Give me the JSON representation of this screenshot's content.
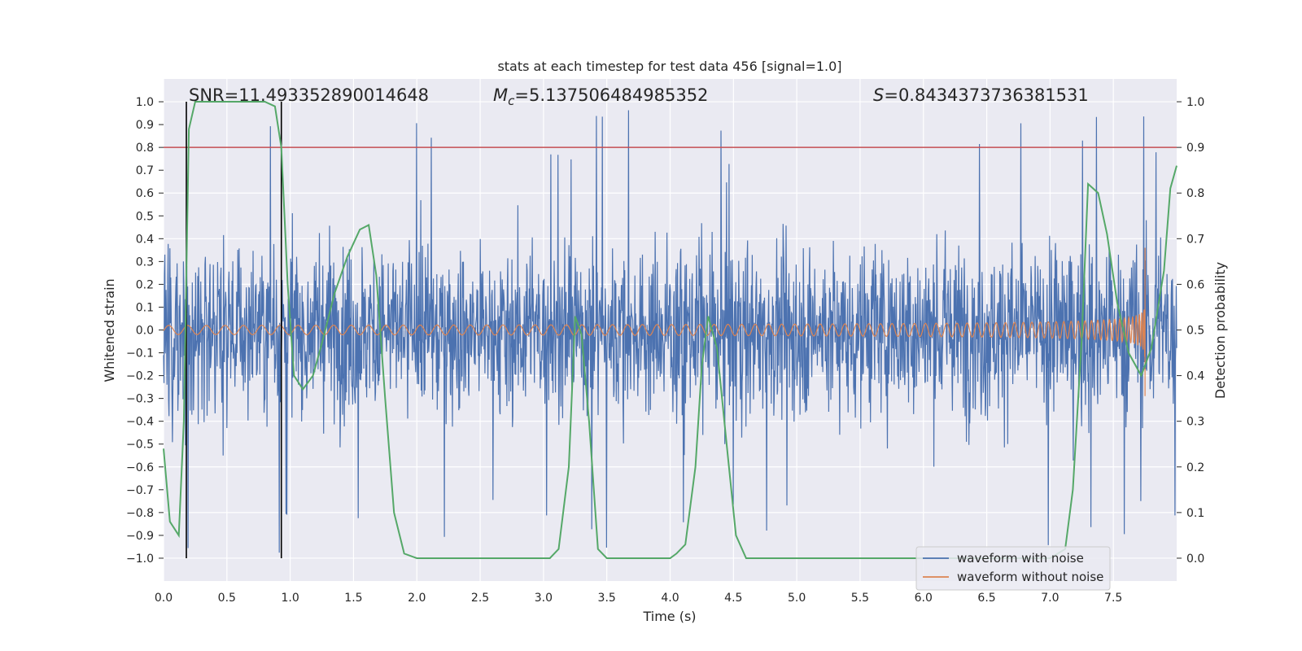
{
  "chart_data": {
    "type": "line",
    "title": "stats at each timestep for test data 456 [signal=1.0]",
    "xlabel": "Time (s)",
    "ylabel": "Whitened strain",
    "y2label": "Detection probability",
    "xlim": [
      0.0,
      8.0
    ],
    "ylim": [
      -1.1,
      1.1
    ],
    "y2lim": [
      -0.05,
      1.05
    ],
    "xticks": [
      "0.0",
      "0.5",
      "1.0",
      "1.5",
      "2.0",
      "2.5",
      "3.0",
      "3.5",
      "4.0",
      "4.5",
      "5.0",
      "5.5",
      "6.0",
      "6.5",
      "7.0",
      "7.5"
    ],
    "xtick_values": [
      0.0,
      0.5,
      1.0,
      1.5,
      2.0,
      2.5,
      3.0,
      3.5,
      4.0,
      4.5,
      5.0,
      5.5,
      6.0,
      6.5,
      7.0,
      7.5
    ],
    "yticks": [
      "1.0",
      "0.9",
      "0.8",
      "0.7",
      "0.6",
      "0.5",
      "0.4",
      "0.3",
      "0.2",
      "0.1",
      "0.0",
      "−0.1",
      "−0.2",
      "−0.3",
      "−0.4",
      "−0.5",
      "−0.6",
      "−0.7",
      "−0.8",
      "−0.9",
      "−1.0"
    ],
    "ytick_values": [
      1.0,
      0.9,
      0.8,
      0.7,
      0.6,
      0.5,
      0.4,
      0.3,
      0.2,
      0.1,
      0.0,
      -0.1,
      -0.2,
      -0.3,
      -0.4,
      -0.5,
      -0.6,
      -0.7,
      -0.8,
      -0.9,
      -1.0
    ],
    "y2ticks": [
      "1.0",
      "0.9",
      "0.8",
      "0.7",
      "0.6",
      "0.5",
      "0.4",
      "0.3",
      "0.2",
      "0.1",
      "0.0"
    ],
    "y2tick_values": [
      1.0,
      0.9,
      0.8,
      0.7,
      0.6,
      0.5,
      0.4,
      0.3,
      0.2,
      0.1,
      0.0
    ],
    "annotations": {
      "snr": "SNR=11.493352890014648",
      "mc_symbol": "M",
      "mc_sub": "c",
      "mc_value": "=5.137506484985352",
      "s_symbol": "S",
      "s_value": "=0.8434373736381531"
    },
    "threshold_line": {
      "y2": 0.9,
      "color": "#c44e52"
    },
    "vertical_markers": [
      0.18,
      0.93
    ],
    "legend": {
      "position": "lower-right",
      "entries": [
        {
          "label": "waveform with noise",
          "color": "#4c72b0"
        },
        {
          "label": "waveform without noise",
          "color": "#dd8452"
        }
      ]
    },
    "series": [
      {
        "name": "waveform with noise",
        "color": "#4c72b0",
        "style": "dense noisy oscillation, mostly within ±0.5 with peaks near ±1.0",
        "x_range": [
          0.0,
          8.0
        ],
        "amplitude_typical": 0.45,
        "peak_max": [
          0.0,
          8.0
        ]
      },
      {
        "name": "waveform without noise",
        "color": "#dd8452",
        "style": "chirp",
        "x_range": [
          0.0,
          7.75
        ],
        "start_amplitude": 0.02,
        "end_amplitude": 0.36,
        "end_min": -0.29
      },
      {
        "name": "detection probability",
        "axis": "y2",
        "color": "#55a868",
        "x": [
          0.0,
          0.05,
          0.12,
          0.16,
          0.2,
          0.25,
          0.3,
          0.5,
          0.7,
          0.8,
          0.88,
          0.93,
          0.98,
          1.03,
          1.1,
          1.18,
          1.25,
          1.35,
          1.45,
          1.55,
          1.62,
          1.68,
          1.75,
          1.82,
          1.9,
          2.0,
          2.5,
          3.0,
          3.05,
          3.12,
          3.2,
          3.25,
          3.3,
          3.36,
          3.43,
          3.5,
          4.0,
          4.05,
          4.12,
          4.2,
          4.25,
          4.3,
          4.37,
          4.45,
          4.52,
          4.6,
          5.0,
          5.5,
          6.0,
          6.5,
          7.0,
          7.12,
          7.18,
          7.25,
          7.3,
          7.38,
          7.45,
          7.53,
          7.62,
          7.72,
          7.8,
          7.9,
          7.95,
          8.0
        ],
        "y": [
          0.24,
          0.08,
          0.05,
          0.3,
          0.94,
          1.0,
          1.0,
          1.0,
          1.0,
          1.0,
          0.99,
          0.9,
          0.6,
          0.4,
          0.37,
          0.4,
          0.47,
          0.58,
          0.66,
          0.72,
          0.73,
          0.62,
          0.35,
          0.1,
          0.01,
          0.0,
          0.0,
          0.0,
          0.0,
          0.02,
          0.2,
          0.53,
          0.49,
          0.3,
          0.02,
          0.0,
          0.0,
          0.01,
          0.03,
          0.2,
          0.42,
          0.53,
          0.46,
          0.24,
          0.05,
          0.0,
          0.0,
          0.0,
          0.0,
          0.0,
          0.0,
          0.02,
          0.15,
          0.48,
          0.82,
          0.8,
          0.71,
          0.56,
          0.45,
          0.4,
          0.46,
          0.63,
          0.81,
          0.86
        ]
      }
    ]
  }
}
